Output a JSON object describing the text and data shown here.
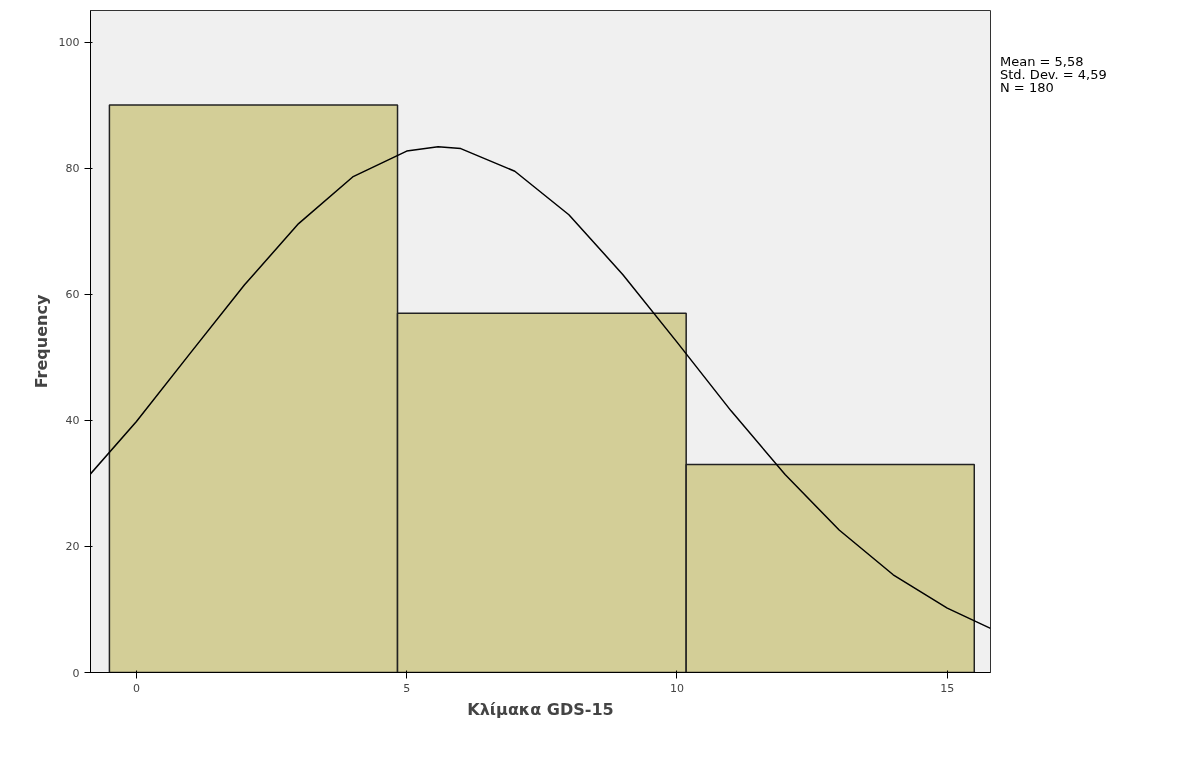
{
  "chart_data": {
    "type": "histogram",
    "xlabel": "Κλίμακα GDS-15",
    "ylabel": "Frequency",
    "bins": [
      -0.5,
      4.83,
      10.17,
      15.5
    ],
    "values": [
      90,
      57,
      33
    ],
    "color": "#d3ce97",
    "series": [
      {
        "type": "line",
        "color": "#000000",
        "x": [
          -0.85,
          0,
          1,
          2,
          3,
          4,
          5,
          5.58,
          6,
          7,
          8,
          9,
          10,
          11,
          12,
          13,
          14,
          15,
          15.8
        ],
        "values": [
          31.5,
          39.8,
          50.7,
          61.5,
          71.2,
          78.6,
          82.7,
          83.4,
          83.1,
          79.5,
          72.6,
          63.1,
          52.4,
          41.5,
          31.4,
          22.6,
          15.5,
          10.2,
          7.0
        ]
      }
    ],
    "xlim": [
      -0.85,
      15.8
    ],
    "xticks": [
      0,
      5,
      10,
      15
    ],
    "ylim": [
      0,
      105
    ],
    "yticks": [
      0,
      20,
      40,
      60,
      80,
      100
    ],
    "grid": false,
    "annotations": [
      "Mean = 5,58",
      "Std. Dev. = 4,59",
      "N = 180"
    ]
  }
}
